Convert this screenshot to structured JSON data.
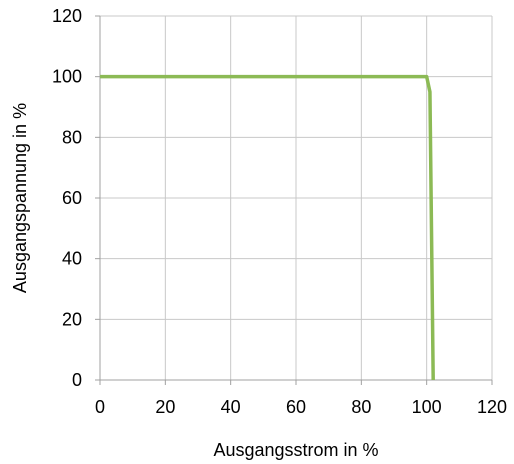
{
  "chart_data": {
    "type": "line",
    "title": "",
    "xlabel": "Ausgangsstrom in %",
    "ylabel": "Ausgangspannung in %",
    "xlim": [
      0,
      120
    ],
    "ylim": [
      0,
      120
    ],
    "x_ticks": [
      "0",
      "20",
      "40",
      "60",
      "80",
      "100",
      "120"
    ],
    "y_ticks": [
      "0",
      "20",
      "40",
      "60",
      "80",
      "100",
      "120"
    ],
    "grid": true,
    "legend": "none",
    "series": [
      {
        "color": "#8cba55",
        "points": [
          {
            "x": 0,
            "y": 100
          },
          {
            "x": 100,
            "y": 100
          },
          {
            "x": 101,
            "y": 95
          },
          {
            "x": 102,
            "y": 0
          }
        ]
      }
    ],
    "colors": {
      "grid": "#c8c8c8",
      "axis": "#a0a0a0",
      "line": "#8cba55"
    }
  }
}
